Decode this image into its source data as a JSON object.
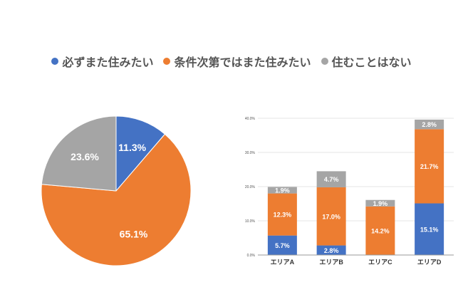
{
  "colors": {
    "blue": "#4472c4",
    "orange": "#ed7d31",
    "gray": "#a5a5a5"
  },
  "legend": [
    {
      "label": "必ずまた住みたい",
      "color": "#4472c4"
    },
    {
      "label": "条件次第ではまた住みたい",
      "color": "#ed7d31"
    },
    {
      "label": "住むことはない",
      "color": "#a5a5a5"
    }
  ],
  "chart_data": [
    {
      "type": "pie",
      "series_labels": [
        "必ずまた住みたい",
        "条件次第ではまた住みたい",
        "住むことはない"
      ],
      "values": [
        11.3,
        65.1,
        23.6
      ],
      "data_labels": [
        "11.3%",
        "65.1%",
        "23.6%"
      ],
      "colors": [
        "#4472c4",
        "#ed7d31",
        "#a5a5a5"
      ]
    },
    {
      "type": "bar",
      "stacked": true,
      "categories": [
        "エリアA",
        "エリアB",
        "エリアC",
        "エリアD"
      ],
      "series": [
        {
          "name": "必ずまた住みたい",
          "values": [
            5.7,
            2.8,
            0,
            15.1
          ],
          "color": "#4472c4"
        },
        {
          "name": "条件次第ではまた住みたい",
          "values": [
            12.3,
            17.0,
            14.2,
            21.7
          ],
          "color": "#ed7d31"
        },
        {
          "name": "住むことはない",
          "values": [
            1.9,
            4.7,
            1.9,
            2.8
          ],
          "color": "#a5a5a5"
        }
      ],
      "ylim": [
        0,
        40
      ],
      "yticks": [
        "0.0%",
        "10.0%",
        "20.0%",
        "30.0%",
        "40.0%"
      ],
      "grid": true
    }
  ]
}
